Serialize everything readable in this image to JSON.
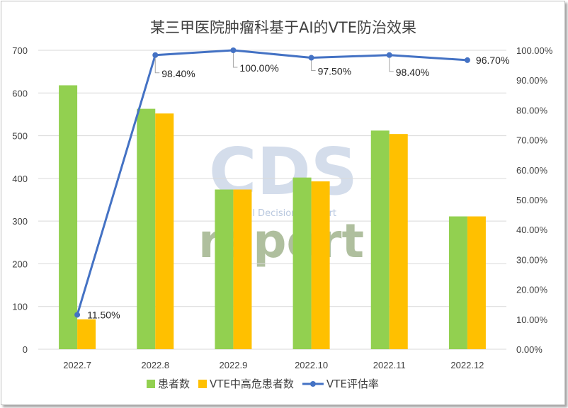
{
  "chart_data": {
    "type": "bar",
    "title": "某三甲医院肿瘤科基于AI的VTE防治效果",
    "categories": [
      "2022.7",
      "2022.8",
      "2022.9",
      "2022.10",
      "2022.11",
      "2022.12"
    ],
    "series": [
      {
        "name": "患者数",
        "type": "bar",
        "axis": "left",
        "color": "#92d050",
        "values": [
          618,
          563,
          374,
          402,
          512,
          311
        ]
      },
      {
        "name": "VTE中高危患者数",
        "type": "bar",
        "axis": "left",
        "color": "#ffc000",
        "values": [
          70,
          552,
          374,
          393,
          504,
          311
        ]
      },
      {
        "name": "VTE评估率",
        "type": "line",
        "axis": "right",
        "color": "#4472c4",
        "values": [
          11.5,
          98.4,
          100.0,
          97.5,
          98.4,
          96.7
        ],
        "labels": [
          "11.50%",
          "98.40%",
          "100.00%",
          "97.50%",
          "98.40%",
          "96.70%"
        ]
      }
    ],
    "y_left": {
      "min": 0,
      "max": 700,
      "ticks": [
        "0",
        "100",
        "200",
        "300",
        "400",
        "500",
        "600",
        "700"
      ]
    },
    "y_right": {
      "min": 0,
      "max": 100,
      "ticks": [
        "0.00%",
        "10.00%",
        "20.00%",
        "30.00%",
        "40.00%",
        "50.00%",
        "60.00%",
        "70.00%",
        "80.00%",
        "90.00%",
        "100.00%"
      ]
    },
    "grid": true,
    "legend_position": "bottom"
  },
  "watermark": {
    "logo": "CDS",
    "tagline": "Clinical Decision Support",
    "word": "report"
  }
}
